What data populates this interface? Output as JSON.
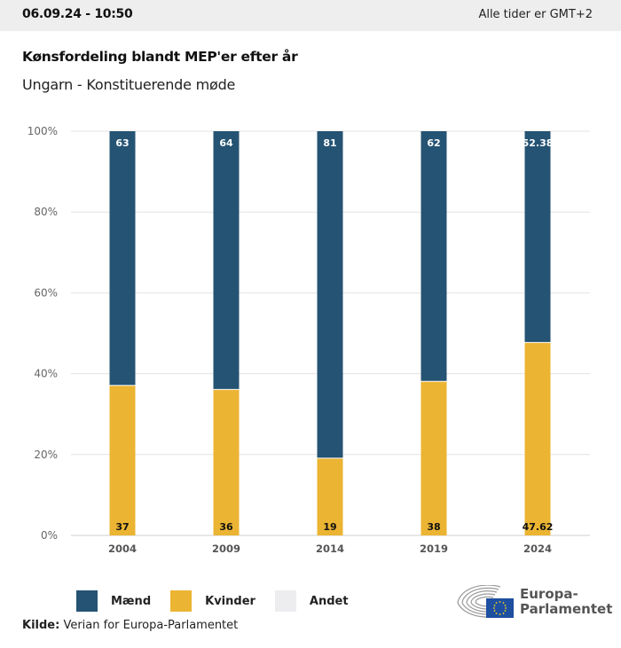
{
  "header": {
    "datetime": "06.09.24 - 10:50",
    "timezone_note": "Alle tider er GMT+2"
  },
  "title": "Kønsfordeling blandt MEP'er efter år",
  "subtitle": "Ungarn - Konstituerende møde",
  "colors": {
    "men": "#255373",
    "women": "#ebb432",
    "other": "#ededf0",
    "grid": "#e3e3e3"
  },
  "chart_data": {
    "type": "bar",
    "stacked": true,
    "title": "Kønsfordeling blandt MEP'er efter år",
    "subtitle": "Ungarn - Konstituerende møde",
    "categories": [
      "2004",
      "2009",
      "2014",
      "2019",
      "2024"
    ],
    "series": [
      {
        "name": "Kvinder",
        "values": [
          37,
          36,
          19,
          38,
          47.62
        ],
        "labels": [
          "37",
          "36",
          "19",
          "38",
          "47.62"
        ]
      },
      {
        "name": "Mænd",
        "values": [
          63,
          64,
          81,
          62,
          52.38
        ],
        "labels": [
          "63",
          "64",
          "81",
          "62",
          "52.38"
        ]
      },
      {
        "name": "Andet",
        "values": [
          0,
          0,
          0,
          0,
          0
        ]
      }
    ],
    "yticks": [
      "0%",
      "20%",
      "40%",
      "60%",
      "80%",
      "100%"
    ],
    "ylim": [
      0,
      100
    ],
    "xlabel": "",
    "ylabel": "",
    "grid": true,
    "legend_position": "bottom-left"
  },
  "legend": [
    {
      "label": "Mænd",
      "color": "#255373"
    },
    {
      "label": "Kvinder",
      "color": "#ebb432"
    },
    {
      "label": "Andet",
      "color": "#ededf0"
    }
  ],
  "source": {
    "label": "Kilde:",
    "text": "Verian for Europa-Parlamentet"
  },
  "logo": {
    "line1": "Europa-",
    "line2": "Parlamentet"
  }
}
